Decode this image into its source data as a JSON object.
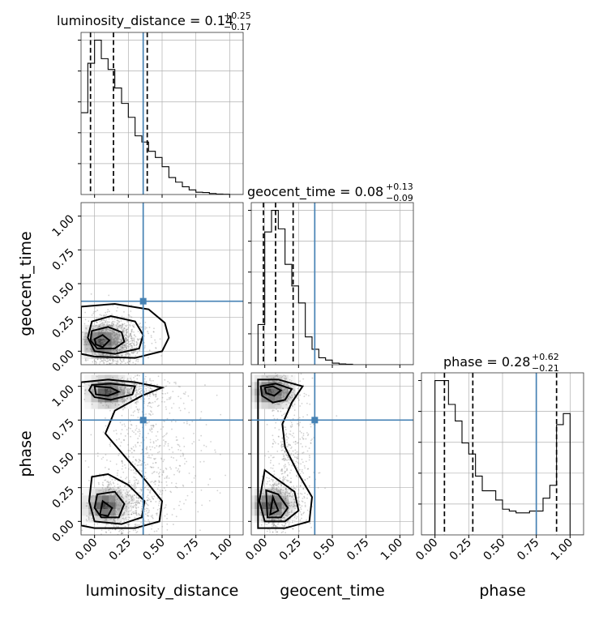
{
  "chart_data": {
    "type": "corner",
    "parameters": [
      "luminosity_distance",
      "geocent_time",
      "phase"
    ],
    "axis_ticks": [
      "0.00",
      "0.25",
      "0.50",
      "0.75",
      "1.00"
    ],
    "truth": [
      0.36,
      0.37,
      0.75
    ],
    "colors": {
      "truth": "#4682b4",
      "hist": "#000000",
      "grid": "#b0b0b0",
      "samples": "#7f7f7f"
    },
    "grid": true,
    "diagonal": [
      {
        "parameter": "luminosity_distance",
        "title_main": "luminosity_distance = 0.14",
        "title_sup": "+0.25",
        "title_sub": "−0.17",
        "xlim": [
          -0.1,
          1.1
        ],
        "quantiles": [
          -0.03,
          0.14,
          0.39
        ],
        "bin_edges": [
          -0.1,
          -0.05,
          0.0,
          0.05,
          0.1,
          0.15,
          0.2,
          0.25,
          0.3,
          0.35,
          0.4,
          0.45,
          0.5,
          0.55,
          0.6,
          0.65,
          0.7,
          0.75,
          0.8,
          0.85,
          0.9,
          0.95,
          1.0,
          1.05,
          1.1
        ],
        "counts": [
          53,
          85,
          100,
          88,
          81,
          69,
          59,
          50,
          38,
          34,
          28,
          24,
          18,
          11,
          8,
          5,
          3,
          1.5,
          1.3,
          0.6,
          0.3,
          0.2,
          0,
          0
        ]
      },
      {
        "parameter": "geocent_time",
        "title_main": "geocent_time = 0.08",
        "title_sup": "+0.13",
        "title_sub": "−0.09",
        "xlim": [
          -0.1,
          1.1
        ],
        "quantiles": [
          -0.01,
          0.08,
          0.21
        ],
        "bin_edges": [
          -0.1,
          -0.05,
          0.0,
          0.05,
          0.1,
          0.15,
          0.2,
          0.25,
          0.3,
          0.35,
          0.4,
          0.45,
          0.5,
          0.55,
          0.6,
          0.65,
          0.7,
          0.75,
          0.8,
          0.85,
          0.9,
          0.95,
          1.0,
          1.05,
          1.1
        ],
        "counts": [
          0,
          26,
          86,
          100,
          88,
          65,
          51,
          40,
          18,
          10,
          4.5,
          3,
          1,
          0.5,
          0.3,
          0,
          0,
          0,
          0,
          0,
          0,
          0,
          0,
          0
        ]
      },
      {
        "parameter": "phase",
        "title_main": "phase = 0.28",
        "title_sup": "+0.62",
        "title_sub": "−0.21",
        "xlim": [
          -0.1,
          1.1
        ],
        "quantiles": [
          0.07,
          0.28,
          0.9
        ],
        "bin_edges": [
          -0.1,
          -0.05,
          0.0,
          0.05,
          0.1,
          0.15,
          0.2,
          0.25,
          0.3,
          0.35,
          0.4,
          0.45,
          0.5,
          0.55,
          0.6,
          0.65,
          0.7,
          0.75,
          0.8,
          0.85,
          0.9,
          0.95,
          1.0,
          1.05,
          1.1
        ],
        "counts": [
          0,
          0,
          84,
          84,
          71,
          62,
          50,
          44,
          32,
          24,
          24,
          19,
          14,
          13,
          12,
          12,
          13,
          13,
          20,
          27,
          60,
          66,
          0,
          0
        ]
      }
    ],
    "panels_2d": [
      {
        "x": "luminosity_distance",
        "y": "geocent_time",
        "xlim": [
          -0.1,
          1.1
        ],
        "ylim": [
          -0.1,
          1.1
        ],
        "density_peak": [
          0.05,
          0.07
        ]
      },
      {
        "x": "luminosity_distance",
        "y": "phase",
        "xlim": [
          -0.1,
          1.1
        ],
        "ylim": [
          -0.1,
          1.1
        ],
        "density_peaks": [
          [
            0.05,
            0.07
          ],
          [
            0.1,
            0.97
          ]
        ]
      },
      {
        "x": "geocent_time",
        "y": "phase",
        "xlim": [
          -0.1,
          1.1
        ],
        "ylim": [
          -0.1,
          1.1
        ],
        "density_peaks": [
          [
            0.03,
            0.07
          ],
          [
            0.04,
            0.97
          ]
        ]
      }
    ]
  }
}
